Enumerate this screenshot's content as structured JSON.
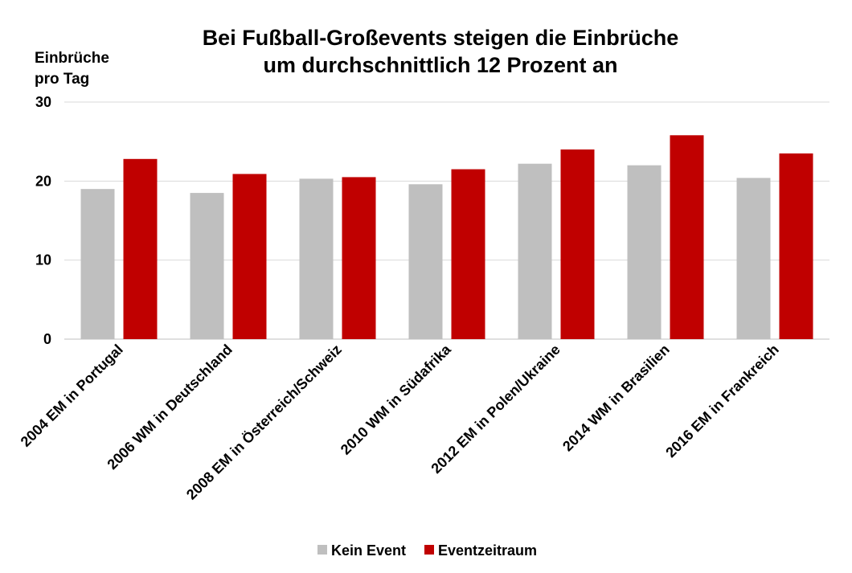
{
  "chart_data": {
    "type": "bar",
    "title_lines": [
      "Bei Fußball-Großevents steigen die Einbrüche",
      "um durchschnittlich 12 Prozent an"
    ],
    "ylabel_lines": [
      "Einbrüche",
      "pro Tag"
    ],
    "xlabel": "",
    "ylim": [
      0,
      30
    ],
    "yticks": [
      0,
      10,
      20,
      30
    ],
    "grid": true,
    "legend_position": "bottom",
    "categories": [
      "2004 EM in Portugal",
      "2006 WM in Deutschland",
      "2008 EM in Österreich/Schweiz",
      "2010 WM in Südafrika",
      "2012 EM in Polen/Ukraine",
      "2014 WM in Brasilien",
      "2016 EM in Frankreich"
    ],
    "series": [
      {
        "name": "Kein Event",
        "color": "#bfbfbf",
        "values": [
          19.0,
          18.5,
          20.3,
          19.6,
          22.2,
          22.0,
          20.4
        ]
      },
      {
        "name": "Eventzeitraum",
        "color": "#c00000",
        "values": [
          22.8,
          20.9,
          20.5,
          21.5,
          24.0,
          25.8,
          23.5
        ]
      }
    ]
  }
}
